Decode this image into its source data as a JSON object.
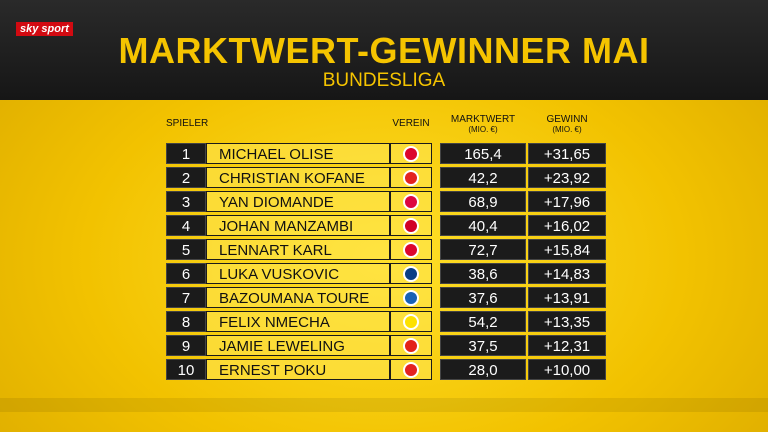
{
  "header": {
    "logo": "sky sport",
    "title": "MARKTWERT-GEWINNER MAI",
    "subtitle": "BUNDESLIGA"
  },
  "table": {
    "columns": [
      "SPIELER",
      "VEREIN",
      "MARKTWERT",
      "GEWINN"
    ],
    "units": [
      "(MIO. €)",
      "(MIO. €)"
    ],
    "rows": [
      [
        "1",
        "MICHAEL OLISE",
        "165,4",
        "+31,65"
      ],
      [
        "2",
        "CHRISTIAN KOFANE",
        "42,2",
        "+23,92"
      ],
      [
        "3",
        "YAN DIOMANDE",
        "68,9",
        "+17,96"
      ],
      [
        "4",
        "JOHAN MANZAMBI",
        "40,4",
        "+16,02"
      ],
      [
        "5",
        "LENNART KARL",
        "72,7",
        "+15,84"
      ],
      [
        "6",
        "LUKA VUSKOVIC",
        "38,6",
        "+14,83"
      ],
      [
        "7",
        "BAZOUMANA TOURE",
        "37,6",
        "+13,91"
      ],
      [
        "8",
        "FELIX NMECHA",
        "54,2",
        "+13,35"
      ],
      [
        "9",
        "JAMIE LEWELING",
        "37,5",
        "+12,31"
      ],
      [
        "10",
        "ERNEST POKU",
        "28,0",
        "+10,00"
      ]
    ]
  }
}
